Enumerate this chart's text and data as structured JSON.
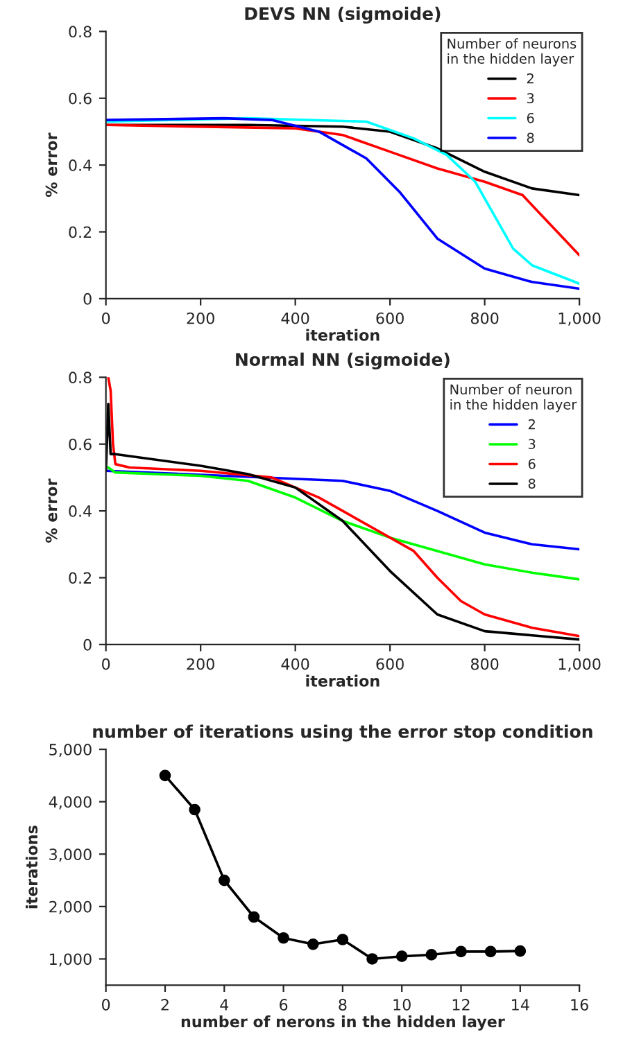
{
  "chart_data": [
    {
      "type": "line",
      "title": "DEVS NN (sigmoide)",
      "xlabel": "iteration",
      "ylabel": "% error",
      "legend_title": "Number of neurons\nin the hidden layer",
      "legend": "top right",
      "grid": false,
      "marker": "none",
      "line_style": "solid",
      "xlim": [
        0,
        1000
      ],
      "ylim": [
        0,
        0.8
      ],
      "xticks": [
        0,
        200,
        400,
        600,
        800,
        {
          "value": 1000,
          "label": "1,000"
        }
      ],
      "yticks": [
        0,
        0.2,
        0.4,
        0.6,
        0.8
      ],
      "series": [
        {
          "name": "2",
          "color": "#000000",
          "x": [
            0,
            300,
            500,
            600,
            700,
            800,
            900,
            1000
          ],
          "values": [
            0.52,
            0.52,
            0.515,
            0.5,
            0.45,
            0.38,
            0.33,
            0.31
          ]
        },
        {
          "name": "3",
          "color": "#ff0000",
          "x": [
            0,
            400,
            500,
            600,
            700,
            800,
            880,
            920,
            1000
          ],
          "values": [
            0.52,
            0.51,
            0.49,
            0.44,
            0.39,
            0.35,
            0.31,
            0.25,
            0.13
          ]
        },
        {
          "name": "6",
          "color": "#00ffff",
          "x": [
            0,
            300,
            550,
            650,
            720,
            780,
            820,
            860,
            900,
            1000
          ],
          "values": [
            0.53,
            0.54,
            0.53,
            0.48,
            0.43,
            0.35,
            0.25,
            0.15,
            0.1,
            0.045
          ]
        },
        {
          "name": "8",
          "color": "#0000ff",
          "x": [
            0,
            250,
            350,
            450,
            550,
            620,
            700,
            800,
            900,
            1000
          ],
          "values": [
            0.535,
            0.54,
            0.535,
            0.5,
            0.42,
            0.32,
            0.18,
            0.09,
            0.05,
            0.03
          ]
        }
      ]
    },
    {
      "type": "line",
      "title": "Normal NN (sigmoide)",
      "xlabel": "iteration",
      "ylabel": "% error",
      "legend_title": "Number of neuron\nin the hidden layer",
      "legend": "top right",
      "grid": false,
      "marker": "none",
      "line_style": "solid",
      "xlim": [
        0,
        1000
      ],
      "ylim": [
        0,
        0.8
      ],
      "xticks": [
        0,
        200,
        400,
        600,
        800,
        {
          "value": 1000,
          "label": "1,000"
        }
      ],
      "yticks": [
        0,
        0.2,
        0.4,
        0.6,
        0.8
      ],
      "series": [
        {
          "name": "2",
          "color": "#0000ff",
          "x": [
            0,
            500,
            600,
            700,
            800,
            900,
            1000
          ],
          "values": [
            0.52,
            0.49,
            0.46,
            0.4,
            0.335,
            0.3,
            0.285
          ]
        },
        {
          "name": "3",
          "color": "#00ff00",
          "x": [
            5,
            20,
            200,
            300,
            400,
            500,
            600,
            700,
            800,
            900,
            1000
          ],
          "values": [
            0.53,
            0.515,
            0.505,
            0.49,
            0.44,
            0.37,
            0.32,
            0.28,
            0.24,
            0.215,
            0.195
          ]
        },
        {
          "name": "6",
          "color": "#ff0000",
          "x": [
            5,
            10,
            15,
            20,
            50,
            200,
            350,
            450,
            550,
            650,
            700,
            750,
            800,
            900,
            1000
          ],
          "values": [
            0.8,
            0.76,
            0.6,
            0.54,
            0.53,
            0.52,
            0.5,
            0.44,
            0.36,
            0.28,
            0.2,
            0.13,
            0.09,
            0.05,
            0.025
          ]
        },
        {
          "name": "8",
          "color": "#000000",
          "x": [
            0,
            5,
            10,
            20,
            200,
            300,
            400,
            500,
            600,
            700,
            800,
            1000
          ],
          "values": [
            0.52,
            0.72,
            0.57,
            0.57,
            0.535,
            0.51,
            0.47,
            0.37,
            0.22,
            0.09,
            0.04,
            0.015
          ]
        }
      ]
    },
    {
      "type": "line",
      "title": "number of iterations using the error stop condition",
      "xlabel": "number of nerons in the hidden layer",
      "ylabel": "iterations",
      "grid": false,
      "marker": "circle",
      "line_style": "solid",
      "xlim": [
        0,
        16
      ],
      "ylim": [
        500,
        5000
      ],
      "xticks": [
        0,
        2,
        4,
        6,
        8,
        10,
        12,
        14,
        16
      ],
      "yticks": [
        {
          "value": 1000,
          "label": "1,000"
        },
        {
          "value": 2000,
          "label": "2,000"
        },
        {
          "value": 3000,
          "label": "3,000"
        },
        {
          "value": 4000,
          "label": "4,000"
        },
        {
          "value": 5000,
          "label": "5,000"
        }
      ],
      "series": [
        {
          "color": "#000000",
          "x": [
            2,
            3,
            4,
            5,
            6,
            7,
            8,
            9,
            10,
            11,
            12,
            13,
            14
          ],
          "values": [
            4500,
            3850,
            2500,
            1800,
            1400,
            1280,
            1370,
            1000,
            1050,
            1080,
            1140,
            1140,
            1150
          ]
        }
      ]
    }
  ]
}
